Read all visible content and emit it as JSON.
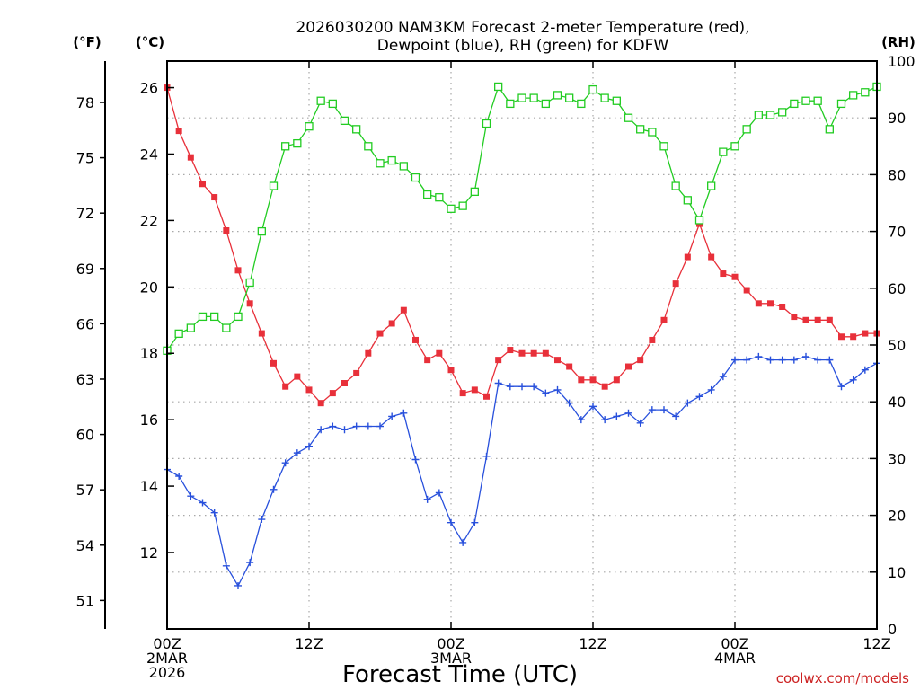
{
  "chart_data": {
    "type": "line",
    "title_lines": [
      "2026030200 NAM3KM Forecast 2-meter Temperature (red),",
      "Dewpoint (blue), RH (green) for KDFW"
    ],
    "xlabel": "Forecast Time (UTC)",
    "credit": "coolwx.com/models",
    "units": {
      "fahrenheit": "(°F)",
      "celsius": "(°C)",
      "rh": "(RH)"
    },
    "x_unit": "forecast hour",
    "xlim": [
      0,
      60
    ],
    "x_ticks": [
      {
        "hour": 0,
        "lines": [
          "00Z",
          "2MAR",
          "2026"
        ]
      },
      {
        "hour": 12,
        "lines": [
          "12Z"
        ]
      },
      {
        "hour": 24,
        "lines": [
          "00Z",
          "3MAR"
        ]
      },
      {
        "hour": 36,
        "lines": [
          "12Z"
        ]
      },
      {
        "hour": 48,
        "lines": [
          "00Z",
          "4MAR"
        ]
      },
      {
        "hour": 60,
        "lines": [
          "12Z"
        ]
      }
    ],
    "celsius_axis": {
      "ylim": [
        9.7,
        26.8
      ],
      "ticks": [
        12,
        14,
        16,
        18,
        20,
        22,
        24,
        26
      ]
    },
    "fahrenheit_axis": {
      "ticks": [
        51,
        54,
        57,
        60,
        63,
        66,
        69,
        72,
        75,
        78
      ]
    },
    "rh_axis": {
      "ylim": [
        0,
        100
      ],
      "ticks": [
        0,
        10,
        20,
        30,
        40,
        50,
        60,
        70,
        80,
        90,
        100
      ]
    },
    "x": [
      0,
      1,
      2,
      3,
      4,
      5,
      6,
      7,
      8,
      9,
      10,
      11,
      12,
      13,
      14,
      15,
      16,
      17,
      18,
      19,
      20,
      21,
      22,
      23,
      24,
      25,
      26,
      27,
      28,
      29,
      30,
      31,
      32,
      33,
      34,
      35,
      36,
      37,
      38,
      39,
      40,
      41,
      42,
      43,
      44,
      45,
      46,
      47,
      48,
      49,
      50,
      51,
      52,
      53,
      54,
      55,
      56,
      57,
      58,
      59,
      60
    ],
    "series": [
      {
        "name": "Temperature",
        "unit": "C",
        "color": "#e8303a",
        "marker": "filled-square",
        "values": [
          26.0,
          24.7,
          23.9,
          23.1,
          22.7,
          21.7,
          20.5,
          19.5,
          18.6,
          17.7,
          17.0,
          17.3,
          16.9,
          16.5,
          16.8,
          17.1,
          17.4,
          18.0,
          18.6,
          18.9,
          19.3,
          18.4,
          17.8,
          18.0,
          17.5,
          16.8,
          16.9,
          16.7,
          17.8,
          18.1,
          18.0,
          18.0,
          18.0,
          17.8,
          17.6,
          17.2,
          17.2,
          17.0,
          17.2,
          17.6,
          17.8,
          18.4,
          19.0,
          20.1,
          20.9,
          21.9,
          20.9,
          20.4,
          20.3,
          19.9,
          19.5,
          19.5,
          19.4,
          19.1,
          19.0,
          19.0,
          19.0,
          18.5,
          18.5,
          18.6,
          18.6
        ]
      },
      {
        "name": "Dewpoint",
        "unit": "C",
        "color": "#2850dc",
        "marker": "plus",
        "values": [
          14.5,
          14.3,
          13.7,
          13.5,
          13.2,
          11.6,
          11.0,
          11.7,
          13.0,
          13.9,
          14.7,
          15.0,
          15.2,
          15.7,
          15.8,
          15.7,
          15.8,
          15.8,
          15.8,
          16.1,
          16.2,
          14.8,
          13.6,
          13.8,
          12.9,
          12.3,
          12.9,
          14.9,
          17.1,
          17.0,
          17.0,
          17.0,
          16.8,
          16.9,
          16.5,
          16.0,
          16.4,
          16.0,
          16.1,
          16.2,
          15.9,
          16.3,
          16.3,
          16.1,
          16.5,
          16.7,
          16.9,
          17.3,
          17.8,
          17.8,
          17.9,
          17.8,
          17.8,
          17.8,
          17.9,
          17.8,
          17.8,
          17.0,
          17.2,
          17.5,
          17.7
        ]
      },
      {
        "name": "RH",
        "unit": "%",
        "color": "#22cc22",
        "marker": "open-square",
        "values": [
          49,
          52,
          53,
          55,
          55,
          53,
          55,
          61,
          70,
          78,
          85,
          85.5,
          88.5,
          93,
          92.5,
          89.5,
          88,
          85,
          82,
          82.5,
          81.5,
          79.5,
          76.5,
          76,
          74,
          74.5,
          77,
          89,
          95.5,
          92.5,
          93.5,
          93.5,
          92.5,
          94,
          93.5,
          92.5,
          95,
          93.5,
          93,
          90,
          88,
          87.5,
          85,
          78,
          75.5,
          72,
          78,
          84,
          85,
          88,
          90.5,
          90.5,
          91,
          92.5,
          93,
          93,
          88,
          92.5,
          94,
          94.5,
          95.5
        ]
      }
    ]
  }
}
